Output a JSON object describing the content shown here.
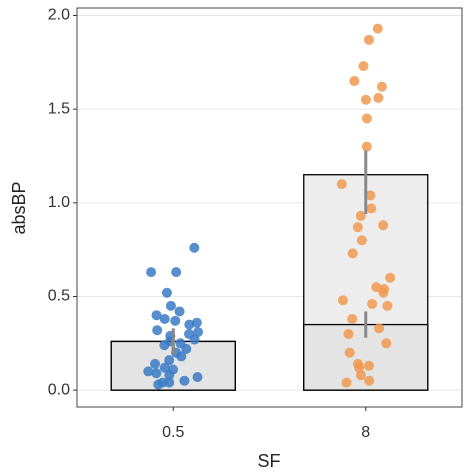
{
  "chart_data": {
    "type": "bar",
    "x_label": "SF",
    "y_label": "absBP",
    "categories": [
      "0.5",
      "8"
    ],
    "series": [
      {
        "color": "#ebebeb",
        "values": [
          0.26,
          1.15
        ],
        "error_low": [
          0.19,
          0.94
        ],
        "error_high": [
          0.33,
          1.28
        ]
      },
      {
        "color": "#e2e2e2",
        "values": [
          0.26,
          0.35
        ],
        "error_low": [
          0.2,
          0.28
        ],
        "error_high": [
          0.32,
          0.42
        ]
      }
    ],
    "points": [
      {
        "color": "#3a7ac6",
        "values": [
          0.76,
          0.63,
          0.63,
          0.52,
          0.45,
          0.42,
          0.4,
          0.38,
          0.37,
          0.36,
          0.35,
          0.32,
          0.31,
          0.3,
          0.29,
          0.27,
          0.26,
          0.25,
          0.24,
          0.22,
          0.2,
          0.18,
          0.16,
          0.14,
          0.12,
          0.11,
          0.1,
          0.09,
          0.08,
          0.07,
          0.05,
          0.04,
          0.04,
          0.03
        ]
      },
      {
        "color": "#f0994d",
        "values": [
          1.93,
          1.87,
          1.73,
          1.65,
          1.62,
          1.56,
          1.55,
          1.45,
          1.3,
          1.1,
          1.04,
          0.97,
          0.93,
          0.88,
          0.87,
          0.8,
          0.73,
          0.6,
          0.55,
          0.54,
          0.52,
          0.48,
          0.46,
          0.45,
          0.38,
          0.33,
          0.3,
          0.25,
          0.2,
          0.14,
          0.13,
          0.12,
          0.08,
          0.05,
          0.04
        ]
      }
    ],
    "ylim": [
      -0.09,
      2.04
    ],
    "yticks": [
      {
        "value": 0,
        "label": "0.0"
      },
      {
        "value": 0.5,
        "label": "0.5"
      },
      {
        "value": 1,
        "label": "1.0"
      },
      {
        "value": 1.5,
        "label": "1.5"
      },
      {
        "value": 2,
        "label": "2.0"
      }
    ],
    "grid": true
  }
}
